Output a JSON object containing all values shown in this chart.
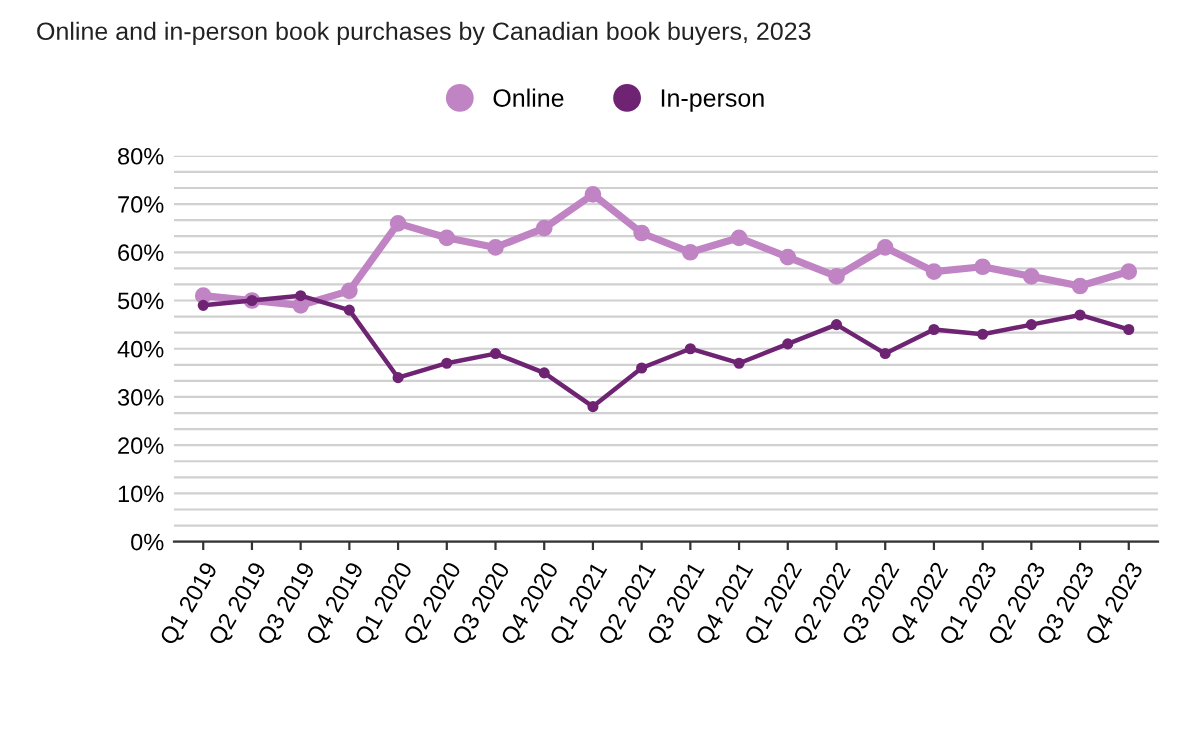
{
  "chart_data": {
    "type": "line",
    "title": "Online and in-person book purchases by Canadian book buyers, 2023",
    "categories": [
      "Q1 2019",
      "Q2 2019",
      "Q3 2019",
      "Q4 2019",
      "Q1 2020",
      "Q2 2020",
      "Q3 2020",
      "Q4 2020",
      "Q1 2021",
      "Q2 2021",
      "Q3 2021",
      "Q4 2021",
      "Q1 2022",
      "Q2 2022",
      "Q3 2022",
      "Q4 2022",
      "Q1 2023",
      "Q2 2023",
      "Q3 2023",
      "Q4 2023"
    ],
    "series": [
      {
        "name": "Online",
        "color": "#c084c4",
        "values": [
          51,
          50,
          49,
          52,
          66,
          63,
          61,
          65,
          72,
          64,
          60,
          63,
          59,
          55,
          61,
          56,
          57,
          55,
          53,
          56
        ]
      },
      {
        "name": "In-person",
        "color": "#6e2472",
        "values": [
          49,
          50,
          51,
          48,
          34,
          37,
          39,
          35,
          28,
          36,
          40,
          37,
          41,
          45,
          39,
          44,
          43,
          45,
          47,
          44
        ]
      }
    ],
    "ylim": [
      0,
      80
    ],
    "yticks": [
      {
        "value": 0,
        "label": "0%"
      },
      {
        "value": 3.33,
        "label": null
      },
      {
        "value": 6.67,
        "label": null
      },
      {
        "value": 10,
        "label": "10%"
      },
      {
        "value": 13.33,
        "label": null
      },
      {
        "value": 16.67,
        "label": null
      },
      {
        "value": 20,
        "label": "20%"
      },
      {
        "value": 23.33,
        "label": null
      },
      {
        "value": 26.67,
        "label": null
      },
      {
        "value": 30,
        "label": "30%"
      },
      {
        "value": 33.33,
        "label": null
      },
      {
        "value": 36.67,
        "label": null
      },
      {
        "value": 40,
        "label": "40%"
      },
      {
        "value": 43.33,
        "label": null
      },
      {
        "value": 46.67,
        "label": null
      },
      {
        "value": 50,
        "label": "50%"
      },
      {
        "value": 53.33,
        "label": null
      },
      {
        "value": 56.67,
        "label": null
      },
      {
        "value": 60,
        "label": "60%"
      },
      {
        "value": 63.33,
        "label": null
      },
      {
        "value": 66.67,
        "label": null
      },
      {
        "value": 70,
        "label": "70%"
      },
      {
        "value": 73.33,
        "label": null
      },
      {
        "value": 76.67,
        "label": null
      },
      {
        "value": 80,
        "label": "80%"
      }
    ],
    "grid": "y",
    "legend": "top",
    "marker": "circle",
    "line_style": "solid"
  }
}
